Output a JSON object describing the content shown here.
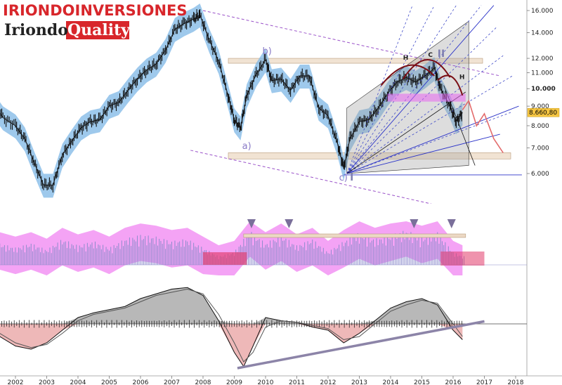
{
  "branding": {
    "title": "IRIONDOINVERSIONES",
    "logo_part1": "Iriondo",
    "logo_part2": "Quality",
    "colors": {
      "title": "#d8262b",
      "logo_bg": "#d8262b"
    }
  },
  "chart_data": [
    {
      "type": "line",
      "panel": "price",
      "x": [
        2001.0,
        2001.3,
        2001.6,
        2002.0,
        2002.3,
        2002.6,
        2002.9,
        2003.2,
        2003.5,
        2003.8,
        2004.1,
        2004.4,
        2004.7,
        2005.0,
        2005.3,
        2005.6,
        2005.9,
        2006.2,
        2006.5,
        2006.8,
        2007.1,
        2007.4,
        2007.7,
        2007.9,
        2008.2,
        2008.5,
        2008.8,
        2009.0,
        2009.2,
        2009.4,
        2009.7,
        2010.0,
        2010.2,
        2010.5,
        2010.8,
        2011.1,
        2011.4,
        2011.7,
        2012.0,
        2012.3,
        2012.5,
        2012.7,
        2013.0,
        2013.3,
        2013.6,
        2013.9,
        2014.2,
        2014.5,
        2014.8,
        2015.1,
        2015.4,
        2015.6,
        2015.9,
        2016.1,
        2016.3
      ],
      "series": [
        {
          "values": [
            9.9,
            9.1,
            8.4,
            8.0,
            7.4,
            6.4,
            5.6,
            5.6,
            6.7,
            7.3,
            7.9,
            8.2,
            8.3,
            9.0,
            9.2,
            9.9,
            10.6,
            11.2,
            11.6,
            12.6,
            14.3,
            14.8,
            15.2,
            15.6,
            13.4,
            11.8,
            9.6,
            8.3,
            7.9,
            9.6,
            10.9,
            11.9,
            10.5,
            10.6,
            9.9,
            10.8,
            10.8,
            8.9,
            8.5,
            7.2,
            6.2,
            7.4,
            8.2,
            8.3,
            8.9,
            9.7,
            10.4,
            10.7,
            10.4,
            10.8,
            11.3,
            10.0,
            9.0,
            8.2,
            8.66
          ]
        }
      ],
      "ylim": [
        5.2,
        16.2
      ],
      "yscale": "log",
      "yticks": [
        {
          "value": 16,
          "label": "16.000"
        },
        {
          "value": 14,
          "label": "14.000"
        },
        {
          "value": 12,
          "label": "12.000"
        },
        {
          "value": 11,
          "label": "11.000"
        },
        {
          "value": 10,
          "label": "10.000"
        },
        {
          "value": 9,
          "label": "9.000"
        },
        {
          "value": 8,
          "label": "8.000"
        },
        {
          "value": 7,
          "label": "7.000"
        },
        {
          "value": 6,
          "label": "6.000"
        }
      ],
      "last_price": {
        "value": 8.6608,
        "label": "8.660,80"
      },
      "bands": [
        {
          "ymin": 11.65,
          "ymax": 12.0
        },
        {
          "ymin": 6.55,
          "ymax": 6.8
        }
      ],
      "annotations": [
        {
          "text": "a)",
          "x": 2009.25,
          "y": 6.95
        },
        {
          "text": "b)",
          "x": 2009.9,
          "y": 12.3
        },
        {
          "text": "c)",
          "x": 2012.35,
          "y": 5.75
        },
        {
          "text": "I",
          "x": 2012.7,
          "y": 5.75
        },
        {
          "text": "H",
          "x": 2014.4,
          "y": 11.9
        },
        {
          "text": "C",
          "x": 2015.2,
          "y": 12.1
        },
        {
          "text": "II",
          "x": 2015.5,
          "y": 12.1
        },
        {
          "text": "H",
          "x": 2016.2,
          "y": 10.6
        }
      ]
    },
    {
      "type": "bar",
      "panel": "indicator-1",
      "x": [
        2001.0,
        2001.5,
        2002.0,
        2002.5,
        2003.0,
        2003.5,
        2004.0,
        2004.5,
        2005.0,
        2005.5,
        2006.0,
        2006.5,
        2007.0,
        2007.5,
        2008.0,
        2008.5,
        2009.0,
        2009.5,
        2010.0,
        2010.5,
        2011.0,
        2011.5,
        2012.0,
        2012.5,
        2013.0,
        2013.5,
        2014.0,
        2014.5,
        2015.0,
        2015.5,
        2016.0,
        2016.3
      ],
      "series": [
        {
          "values": [
            0.3,
            0.5,
            0.4,
            0.5,
            0.35,
            0.6,
            0.45,
            0.55,
            0.4,
            0.6,
            0.7,
            0.65,
            0.55,
            0.6,
            0.4,
            0.2,
            0.3,
            0.8,
            0.5,
            0.7,
            0.45,
            0.6,
            0.3,
            0.55,
            0.75,
            0.6,
            0.7,
            0.8,
            0.65,
            0.75,
            0.3,
            0.2
          ]
        }
      ],
      "ylim": [
        0,
        1
      ]
    },
    {
      "type": "line",
      "panel": "macd",
      "x": [
        2001.0,
        2001.5,
        2002.0,
        2002.5,
        2003.0,
        2003.5,
        2004.0,
        2004.5,
        2005.0,
        2005.5,
        2006.0,
        2006.5,
        2007.0,
        2007.5,
        2008.0,
        2008.5,
        2009.0,
        2009.3,
        2009.6,
        2010.0,
        2010.5,
        2011.0,
        2011.5,
        2012.0,
        2012.5,
        2013.0,
        2013.5,
        2014.0,
        2014.5,
        2015.0,
        2015.5,
        2016.0,
        2016.3
      ],
      "series": [
        {
          "values": [
            0.05,
            -0.4,
            -0.7,
            -0.8,
            -0.6,
            -0.2,
            0.2,
            0.35,
            0.45,
            0.55,
            0.8,
            0.95,
            1.1,
            1.15,
            0.9,
            0.1,
            -0.9,
            -1.35,
            -0.7,
            0.2,
            0.1,
            0.05,
            -0.1,
            -0.2,
            -0.6,
            -0.3,
            0.1,
            0.5,
            0.7,
            0.8,
            0.6,
            -0.2,
            -0.5
          ]
        },
        {
          "values": [
            0.0,
            -0.3,
            -0.6,
            -0.75,
            -0.65,
            -0.3,
            0.1,
            0.3,
            0.4,
            0.5,
            0.7,
            0.9,
            1.0,
            1.1,
            0.95,
            0.3,
            -0.6,
            -1.2,
            -0.9,
            -0.1,
            0.1,
            0.05,
            -0.05,
            -0.15,
            -0.5,
            -0.4,
            0.0,
            0.4,
            0.6,
            0.75,
            0.65,
            0.0,
            -0.4
          ]
        }
      ],
      "ylim": [
        -1.5,
        1.4
      ]
    }
  ],
  "xaxis": {
    "tick_labels": [
      "2002",
      "2003",
      "2004",
      "2005",
      "2006",
      "2007",
      "2008",
      "2009",
      "2010",
      "2011",
      "2012",
      "2013",
      "2014",
      "2015",
      "2016",
      "2017",
      "2018"
    ]
  }
}
